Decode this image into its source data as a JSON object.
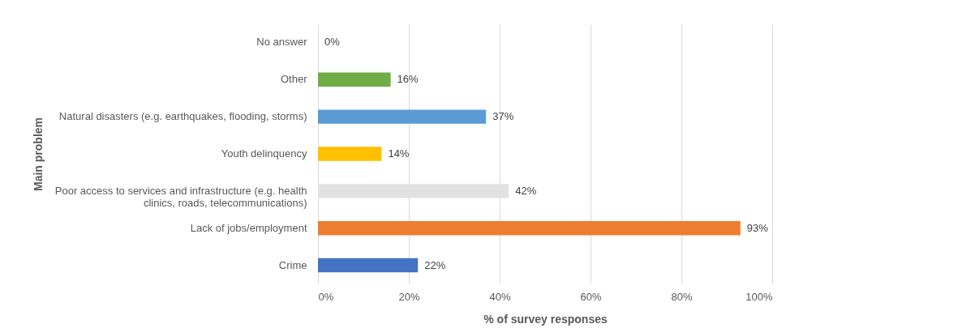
{
  "chart_data": {
    "type": "bar",
    "orientation": "horizontal",
    "xlabel": "% of survey responses",
    "ylabel": "Main problem",
    "categories": [
      "No answer",
      "Other",
      "Natural disasters (e.g. earthquakes, flooding, storms)",
      "Youth delinquency",
      "Poor access to services and infrastructure (e.g. health clinics, roads, telecommunications)",
      "Lack of jobs/employment",
      "Crime"
    ],
    "values": [
      0,
      16,
      37,
      14,
      42,
      93,
      22
    ],
    "colors": [
      "#a5a5a5",
      "#70ad47",
      "#5b9bd5",
      "#ffc000",
      "#e2e2e2",
      "#ed7d31",
      "#4472c4"
    ],
    "value_labels": [
      "0%",
      "16%",
      "37%",
      "14%",
      "42%",
      "93%",
      "22%"
    ],
    "xlim": [
      0,
      100
    ],
    "xticks": [
      {
        "value": 0,
        "label": "0%"
      },
      {
        "value": 20,
        "label": "20%"
      },
      {
        "value": 40,
        "label": "40%"
      },
      {
        "value": 60,
        "label": "60%"
      },
      {
        "value": 80,
        "label": "80%"
      },
      {
        "value": 100,
        "label": "100%"
      }
    ],
    "grid": "x"
  }
}
